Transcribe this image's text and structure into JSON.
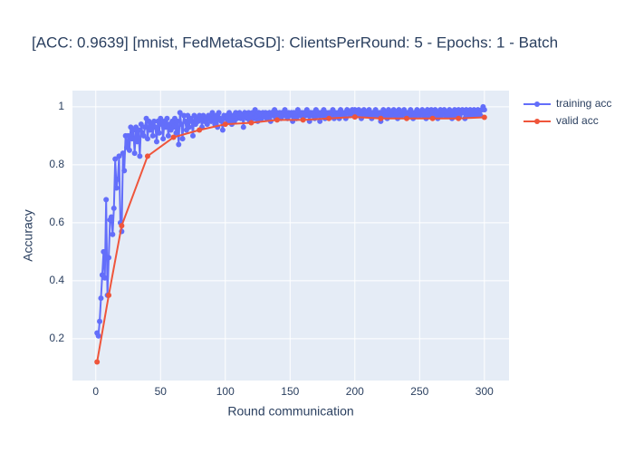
{
  "chart_data": {
    "type": "line",
    "title": "[ACC: 0.9639] [mnist, FedMetaSGD]: ClientsPerRound: 5 - Epochs: 1 - Batch",
    "x_label": "Round communication",
    "y_label": "Accuracy",
    "xlim": [
      -18,
      319
    ],
    "ylim": [
      0.056,
      1.056
    ],
    "xticks": [
      0,
      50,
      100,
      150,
      200,
      250,
      300
    ],
    "yticks": [
      0.2,
      0.4,
      0.6,
      0.8,
      1
    ],
    "grid": true,
    "legend": "top-right",
    "series": [
      {
        "name": "training acc",
        "color": "#636efa",
        "x": [
          1,
          2,
          3,
          4,
          5,
          6,
          7,
          8,
          9,
          10,
          11,
          12,
          13,
          14,
          15,
          16,
          17,
          18,
          19,
          20,
          21,
          22,
          23,
          24,
          25,
          26,
          27,
          28,
          29,
          30,
          31,
          32,
          33,
          34,
          35,
          36,
          37,
          38,
          39,
          40,
          41,
          42,
          43,
          44,
          45,
          46,
          47,
          48,
          49,
          50,
          51,
          52,
          53,
          54,
          55,
          56,
          57,
          58,
          59,
          60,
          61,
          62,
          63,
          64,
          65,
          66,
          67,
          68,
          69,
          70,
          71,
          72,
          73,
          74,
          75,
          76,
          77,
          78,
          79,
          80,
          81,
          82,
          83,
          84,
          85,
          86,
          87,
          88,
          89,
          90,
          91,
          92,
          93,
          94,
          95,
          96,
          97,
          98,
          99,
          100,
          101,
          102,
          103,
          104,
          105,
          106,
          107,
          108,
          109,
          110,
          111,
          112,
          113,
          114,
          115,
          116,
          117,
          118,
          119,
          120,
          121,
          122,
          123,
          124,
          125,
          126,
          127,
          128,
          129,
          130,
          131,
          132,
          133,
          134,
          135,
          136,
          137,
          138,
          139,
          140,
          141,
          142,
          143,
          144,
          145,
          146,
          147,
          148,
          149,
          150,
          151,
          152,
          153,
          154,
          155,
          156,
          157,
          158,
          159,
          160,
          161,
          162,
          163,
          164,
          165,
          166,
          167,
          168,
          169,
          170,
          171,
          172,
          173,
          174,
          175,
          176,
          177,
          178,
          179,
          180,
          181,
          182,
          183,
          184,
          185,
          186,
          187,
          188,
          189,
          190,
          191,
          192,
          193,
          194,
          195,
          196,
          197,
          198,
          199,
          200,
          201,
          202,
          203,
          204,
          205,
          206,
          207,
          208,
          209,
          210,
          211,
          212,
          213,
          214,
          215,
          216,
          217,
          218,
          219,
          220,
          221,
          222,
          223,
          224,
          225,
          226,
          227,
          228,
          229,
          230,
          231,
          232,
          233,
          234,
          235,
          236,
          237,
          238,
          239,
          240,
          241,
          242,
          243,
          244,
          245,
          246,
          247,
          248,
          249,
          250,
          251,
          252,
          253,
          254,
          255,
          256,
          257,
          258,
          259,
          260,
          261,
          262,
          263,
          264,
          265,
          266,
          267,
          268,
          269,
          270,
          271,
          272,
          273,
          274,
          275,
          276,
          277,
          278,
          279,
          280,
          281,
          282,
          283,
          284,
          285,
          286,
          287,
          288,
          289,
          290,
          291,
          292,
          293,
          294,
          295,
          296,
          297,
          298,
          299,
          300
        ],
        "values": [
          0.22,
          0.21,
          0.26,
          0.34,
          0.42,
          0.5,
          0.41,
          0.68,
          0.35,
          0.48,
          0.61,
          0.62,
          0.56,
          0.65,
          0.82,
          0.72,
          0.75,
          0.83,
          0.6,
          0.57,
          0.84,
          0.78,
          0.9,
          0.86,
          0.9,
          0.85,
          0.93,
          0.89,
          0.92,
          0.84,
          0.93,
          0.88,
          0.92,
          0.83,
          0.94,
          0.91,
          0.9,
          0.93,
          0.96,
          0.89,
          0.95,
          0.92,
          0.94,
          0.9,
          0.95,
          0.93,
          0.88,
          0.95,
          0.91,
          0.96,
          0.94,
          0.89,
          0.95,
          0.93,
          0.96,
          0.9,
          0.94,
          0.92,
          0.95,
          0.93,
          0.96,
          0.91,
          0.95,
          0.87,
          0.98,
          0.94,
          0.89,
          0.97,
          0.95,
          0.92,
          0.97,
          0.93,
          0.96,
          0.95,
          0.9,
          0.97,
          0.94,
          0.96,
          0.95,
          0.97,
          0.96,
          0.93,
          0.97,
          0.95,
          0.96,
          0.94,
          0.97,
          0.96,
          0.95,
          0.98,
          0.96,
          0.94,
          0.97,
          0.93,
          0.98,
          0.96,
          0.95,
          0.92,
          0.97,
          0.96,
          0.97,
          0.95,
          0.98,
          0.96,
          0.94,
          0.97,
          0.95,
          0.98,
          0.96,
          0.97,
          0.98,
          0.96,
          0.97,
          0.93,
          0.98,
          0.97,
          0.96,
          0.98,
          0.95,
          0.97,
          0.98,
          0.96,
          0.99,
          0.97,
          0.95,
          0.98,
          0.97,
          0.96,
          0.98,
          0.97,
          0.98,
          0.96,
          0.97,
          0.98,
          0.95,
          0.98,
          0.97,
          0.99,
          0.96,
          0.98,
          0.97,
          0.98,
          0.96,
          0.98,
          0.97,
          0.99,
          0.97,
          0.96,
          0.98,
          0.97,
          0.98,
          0.95,
          0.98,
          0.97,
          0.96,
          0.99,
          0.98,
          0.97,
          0.98,
          0.96,
          0.98,
          0.97,
          0.99,
          0.97,
          0.95,
          0.98,
          0.97,
          0.98,
          0.96,
          0.99,
          0.97,
          0.98,
          0.95,
          0.98,
          0.97,
          0.99,
          0.96,
          0.98,
          0.97,
          0.98,
          0.98,
          0.97,
          0.99,
          0.96,
          0.98,
          0.97,
          0.98,
          0.96,
          0.99,
          0.98,
          0.97,
          0.98,
          0.96,
          0.99,
          0.98,
          0.97,
          0.98,
          0.99,
          0.97,
          0.99,
          0.98,
          0.97,
          0.99,
          0.98,
          0.96,
          0.98,
          0.99,
          0.97,
          0.98,
          0.97,
          0.99,
          0.98,
          0.96,
          0.98,
          0.97,
          0.99,
          0.98,
          0.97,
          0.98,
          0.95,
          0.98,
          0.99,
          0.97,
          0.98,
          0.96,
          0.99,
          0.98,
          0.97,
          0.98,
          0.99,
          0.97,
          0.98,
          0.96,
          0.99,
          0.98,
          0.97,
          0.98,
          0.99,
          0.97,
          0.98,
          0.98,
          0.97,
          0.99,
          0.98,
          0.96,
          0.98,
          0.97,
          0.99,
          0.98,
          0.97,
          0.98,
          0.99,
          0.97,
          0.98,
          0.96,
          0.99,
          0.98,
          0.97,
          0.99,
          0.98,
          0.97,
          0.99,
          0.98,
          0.96,
          0.98,
          0.99,
          0.97,
          0.98,
          0.99,
          0.97,
          0.98,
          0.97,
          0.99,
          0.98,
          0.96,
          0.98,
          0.99,
          0.97,
          0.98,
          0.99,
          0.97,
          0.98,
          0.99,
          0.98,
          0.96,
          0.99,
          0.98,
          0.97,
          0.99,
          0.98,
          0.97,
          0.99,
          0.98,
          0.97,
          0.99,
          0.98,
          0.97,
          0.99,
          1.0,
          0.99
        ]
      },
      {
        "name": "valid acc",
        "color": "#ef553b",
        "x": [
          1,
          10,
          20,
          40,
          60,
          80,
          100,
          120,
          140,
          160,
          180,
          200,
          220,
          240,
          260,
          280,
          300
        ],
        "values": [
          0.12,
          0.35,
          0.59,
          0.83,
          0.895,
          0.92,
          0.94,
          0.945,
          0.955,
          0.955,
          0.96,
          0.965,
          0.96,
          0.96,
          0.96,
          0.96,
          0.9639
        ]
      }
    ]
  }
}
